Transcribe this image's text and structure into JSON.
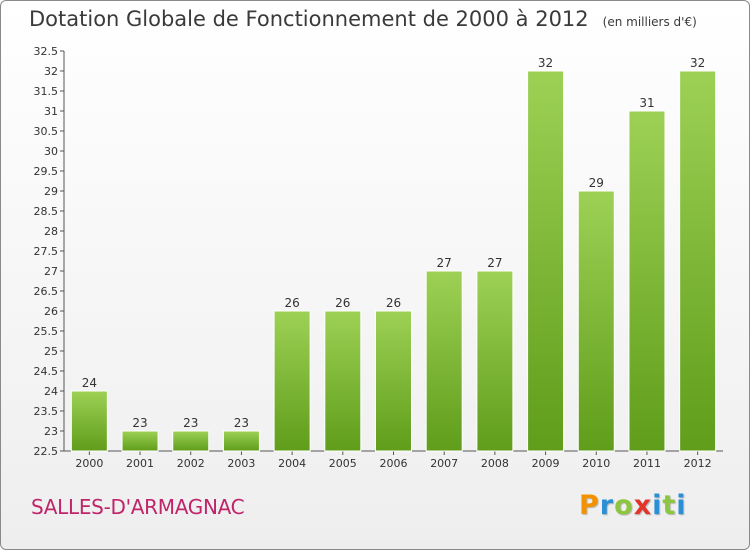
{
  "header": {
    "title": "Dotation Globale de Fonctionnement de 2000 à 2012",
    "subtitle": "(en milliers d'€)"
  },
  "footer": {
    "commune": "SALLES-D'ARMAGNAC",
    "brand": "Proxiti"
  },
  "colors": {
    "bar_top": "#9dd155",
    "bar_bottom": "#5f9d1a",
    "commune_text": "#c0246a",
    "brand_letters": [
      "#f39200",
      "#2b8fd6",
      "#8cc63f",
      "#e4352b",
      "#2b8fd6",
      "#8cc63f",
      "#2b8fd6"
    ]
  },
  "chart_data": {
    "type": "bar",
    "title": "Dotation Globale de Fonctionnement de 2000 à 2012",
    "subtitle": "(en milliers d'€)",
    "categories": [
      "2000",
      "2001",
      "2002",
      "2003",
      "2004",
      "2005",
      "2006",
      "2007",
      "2008",
      "2009",
      "2010",
      "2011",
      "2012"
    ],
    "values": [
      24,
      23,
      23,
      23,
      26,
      26,
      26,
      27,
      27,
      32,
      29,
      31,
      32
    ],
    "ylim": [
      22.5,
      32.5
    ],
    "yticks": [
      "22.5",
      "23",
      "23.5",
      "24",
      "24.5",
      "25",
      "25.5",
      "26",
      "26.5",
      "27",
      "27.5",
      "28",
      "28.5",
      "29",
      "29.5",
      "30",
      "30.5",
      "31",
      "31.5",
      "32",
      "32.5"
    ],
    "grid": false,
    "xlabel": "",
    "ylabel": ""
  }
}
